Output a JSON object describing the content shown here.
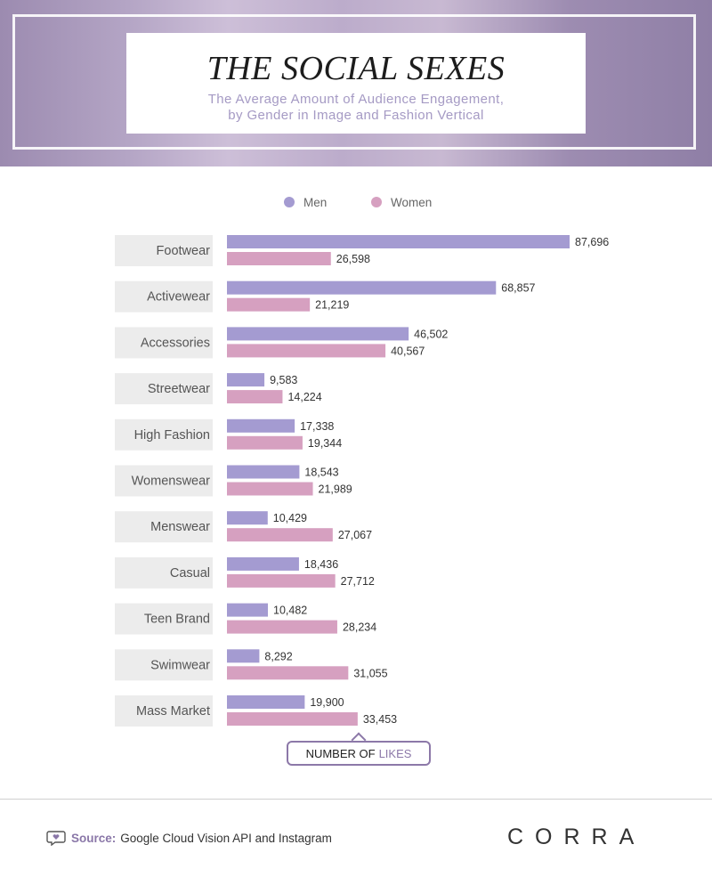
{
  "header": {
    "title": "THE SOCIAL SEXES",
    "subtitle_line1": "The Average Amount of Audience Engagement,",
    "subtitle_line2": "by Gender in Image and Fashion Vertical"
  },
  "units": {
    "prefix": "NUMBER OF",
    "accent": "LIKES"
  },
  "footer": {
    "source_label": "Source:",
    "source_text": "Google Cloud Vision API and Instagram",
    "logo": "CORRA"
  },
  "colors": {
    "men": "#a49bd1",
    "women": "#d6a0c0",
    "category_bg": "#ececec",
    "accent": "#8c78a8"
  },
  "chart_data": {
    "type": "bar",
    "orientation": "horizontal",
    "legend_position": "top",
    "categories": [
      "Footwear",
      "Activewear",
      "Accessories",
      "Streetwear",
      "High Fashion",
      "Womenswear",
      "Menswear",
      "Casual",
      "Teen Brand",
      "Swimwear",
      "Mass Market"
    ],
    "series": [
      {
        "name": "Men",
        "values": [
          87696,
          68857,
          46502,
          9583,
          17338,
          18543,
          10429,
          18436,
          10482,
          8292,
          19900
        ],
        "labels": [
          "87,696",
          "68,857",
          "46,502",
          "9,583",
          "17,338",
          "18,543",
          "10,429",
          "18,436",
          "10,482",
          "8,292",
          "19,900"
        ]
      },
      {
        "name": "Women",
        "values": [
          26598,
          21219,
          40567,
          14224,
          19344,
          21989,
          27067,
          27712,
          28234,
          31055,
          33453
        ],
        "labels": [
          "26,598",
          "21,219",
          "40,567",
          "14,224",
          "19,344",
          "21,989",
          "27,067",
          "27,712",
          "28,234",
          "31,055",
          "33,453"
        ]
      }
    ],
    "xlabel": "NUMBER OF LIKES",
    "xlim": [
      0,
      87696
    ]
  }
}
